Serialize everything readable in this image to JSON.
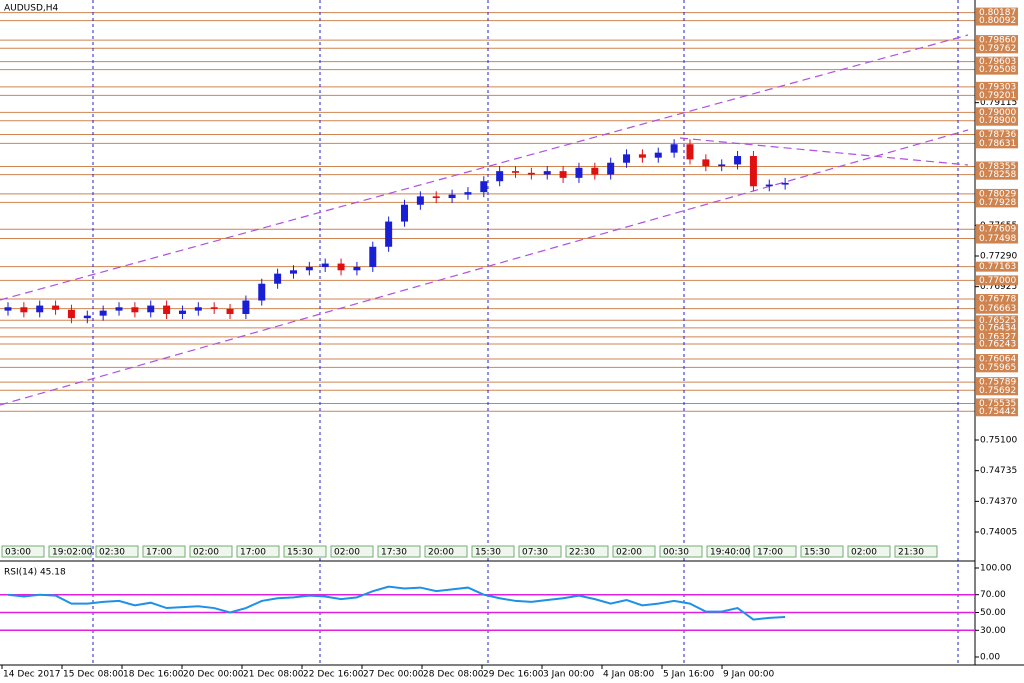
{
  "chart_data": {
    "type": "candlestick",
    "title": "AUDUSD,H4",
    "up_color": "#1a1fd6",
    "down_color": "#e01010",
    "level_color": "#cf8450",
    "ylim": [
      0.73672,
      0.80313
    ],
    "yticks": [
      {
        "value": 0.79115,
        "label": "0.79115"
      },
      {
        "value": 0.77655,
        "label": "0.77655"
      },
      {
        "value": 0.7729,
        "label": "0.77290"
      },
      {
        "value": 0.76925,
        "label": "0.76925"
      },
      {
        "value": 0.751,
        "label": "0.75100"
      },
      {
        "value": 0.74735,
        "label": "0.74735"
      },
      {
        "value": 0.7437,
        "label": "0.74370"
      },
      {
        "value": 0.74005,
        "label": "0.74005"
      }
    ],
    "levels": [
      {
        "value": 0.80187,
        "label": "0.80187"
      },
      {
        "value": 0.80092,
        "label": "0.80092"
      },
      {
        "value": 0.7986,
        "label": "0.79860"
      },
      {
        "value": 0.79762,
        "label": "0.79762"
      },
      {
        "value": 0.79603,
        "label": "0.79603"
      },
      {
        "value": 0.79508,
        "label": "0.79508"
      },
      {
        "value": 0.79303,
        "label": "0.79303"
      },
      {
        "value": 0.79201,
        "label": "0.79201"
      },
      {
        "value": 0.79,
        "label": "0.79000"
      },
      {
        "value": 0.789,
        "label": "0.78900"
      },
      {
        "value": 0.78736,
        "label": "0.78736"
      },
      {
        "value": 0.78631,
        "label": "0.78631"
      },
      {
        "value": 0.78355,
        "label": "0.78355"
      },
      {
        "value": 0.78258,
        "label": "0.78258"
      },
      {
        "value": 0.78029,
        "label": "0.78029"
      },
      {
        "value": 0.77928,
        "label": "0.77928"
      },
      {
        "value": 0.77609,
        "label": "0.77609"
      },
      {
        "value": 0.77498,
        "label": "0.77498"
      },
      {
        "value": 0.77163,
        "label": "0.77163"
      },
      {
        "value": 0.77,
        "label": "0.77000"
      },
      {
        "value": 0.76778,
        "label": "0.76778"
      },
      {
        "value": 0.76663,
        "label": "0.76663"
      },
      {
        "value": 0.76525,
        "label": "0.76525"
      },
      {
        "value": 0.76434,
        "label": "0.76434"
      },
      {
        "value": 0.76327,
        "label": "0.76327"
      },
      {
        "value": 0.76243,
        "label": "0.76243"
      },
      {
        "value": 0.76064,
        "label": "0.76064"
      },
      {
        "value": 0.75965,
        "label": "0.75965"
      },
      {
        "value": 0.75789,
        "label": "0.75789"
      },
      {
        "value": 0.75692,
        "label": "0.75692"
      },
      {
        "value": 0.75535,
        "label": "0.75535"
      },
      {
        "value": 0.75442,
        "label": "0.75442"
      }
    ],
    "open": [
      0.7664,
      0.7668,
      0.7662,
      0.767,
      0.7665,
      0.7655,
      0.7658,
      0.7664,
      0.7668,
      0.7662,
      0.767,
      0.766,
      0.7664,
      0.7668,
      0.7666,
      0.766,
      0.7676,
      0.7696,
      0.7708,
      0.7712,
      0.7716,
      0.772,
      0.7712,
      0.7716,
      0.774,
      0.777,
      0.779,
      0.78,
      0.7798,
      0.7802,
      0.7805,
      0.7818,
      0.783,
      0.7828,
      0.7826,
      0.783,
      0.7822,
      0.7834,
      0.7826,
      0.784,
      0.785,
      0.7846,
      0.7852,
      0.7862,
      0.7844,
      0.7836,
      0.7838,
      0.7848,
      0.7812,
      0.7814
    ],
    "high": [
      0.7674,
      0.7674,
      0.7676,
      0.7676,
      0.7671,
      0.7664,
      0.767,
      0.7674,
      0.7674,
      0.7676,
      0.7676,
      0.767,
      0.7674,
      0.7674,
      0.7672,
      0.7682,
      0.7702,
      0.7714,
      0.7718,
      0.7722,
      0.7726,
      0.7726,
      0.7722,
      0.7746,
      0.7776,
      0.7796,
      0.7806,
      0.7806,
      0.7808,
      0.7811,
      0.7824,
      0.7836,
      0.7836,
      0.7834,
      0.7836,
      0.7836,
      0.784,
      0.784,
      0.7846,
      0.7856,
      0.7856,
      0.7858,
      0.7868,
      0.7868,
      0.785,
      0.7844,
      0.7854,
      0.7854,
      0.782,
      0.7822
    ],
    "low": [
      0.7658,
      0.7656,
      0.7656,
      0.7659,
      0.7649,
      0.7649,
      0.7652,
      0.7658,
      0.7656,
      0.7656,
      0.7654,
      0.7654,
      0.7658,
      0.766,
      0.7654,
      0.7654,
      0.767,
      0.769,
      0.7702,
      0.7706,
      0.771,
      0.7706,
      0.7706,
      0.771,
      0.7734,
      0.7764,
      0.7784,
      0.7792,
      0.7792,
      0.7796,
      0.7799,
      0.7812,
      0.7822,
      0.782,
      0.782,
      0.7816,
      0.7816,
      0.782,
      0.782,
      0.7834,
      0.784,
      0.784,
      0.7846,
      0.7838,
      0.783,
      0.783,
      0.7832,
      0.7806,
      0.7806,
      0.7808
    ],
    "close": [
      0.7668,
      0.7662,
      0.767,
      0.7665,
      0.7655,
      0.7658,
      0.7664,
      0.7668,
      0.7662,
      0.767,
      0.766,
      0.7664,
      0.7668,
      0.7666,
      0.766,
      0.7676,
      0.7696,
      0.7708,
      0.7712,
      0.7716,
      0.772,
      0.7712,
      0.7716,
      0.774,
      0.777,
      0.779,
      0.78,
      0.7798,
      0.7802,
      0.7805,
      0.7818,
      0.783,
      0.7828,
      0.7826,
      0.783,
      0.7822,
      0.7834,
      0.7826,
      0.784,
      0.785,
      0.7846,
      0.7852,
      0.7862,
      0.7844,
      0.7836,
      0.7838,
      0.7848,
      0.7812,
      0.7814,
      0.7816
    ],
    "time_boxes": [
      "03:00",
      "19:02:00",
      "02:30",
      "17:00",
      "02:00",
      "17:00",
      "15:30",
      "02:00",
      "17:30",
      "20:00",
      "15:30",
      "07:30",
      "22:30",
      "02:00",
      "00:30",
      "19:40:00",
      "17:00",
      "15:30",
      "02:00",
      "21:30"
    ],
    "x_labels": [
      "14 Dec 2017",
      "15 Dec 08:00",
      "18 Dec 16:00",
      "20 Dec 00:00",
      "21 Dec 08:00",
      "22 Dec 16:00",
      "27 Dec 00:00",
      "28 Dec 08:00",
      "29 Dec 16:00",
      "3 Jan 00:00",
      "4 Jan 08:00",
      "5 Jan 16:00",
      "9 Jan 00:00"
    ],
    "rsi": {
      "title": "RSI(14) 45.18",
      "color": "#1e90e6",
      "level_color": "#e020e0",
      "ylim": [
        0,
        100
      ],
      "yticks": [
        {
          "value": 100,
          "label": "100.00"
        },
        {
          "value": 70,
          "label": "70.00"
        },
        {
          "value": 50,
          "label": "50.00"
        },
        {
          "value": 30,
          "label": "30.00"
        },
        {
          "value": 0,
          "label": "0.00"
        }
      ],
      "levels": [
        70,
        50,
        30
      ],
      "values": [
        70,
        68,
        70,
        69,
        60,
        60,
        62,
        63,
        58,
        61,
        55,
        56,
        57,
        55,
        50,
        55,
        63,
        66,
        67,
        69,
        68,
        65,
        67,
        74,
        79,
        77,
        78,
        74,
        76,
        78,
        70,
        66,
        63,
        62,
        64,
        66,
        69,
        65,
        60,
        64,
        58,
        60,
        63,
        60,
        51,
        51,
        55,
        42,
        44,
        45
      ]
    }
  }
}
